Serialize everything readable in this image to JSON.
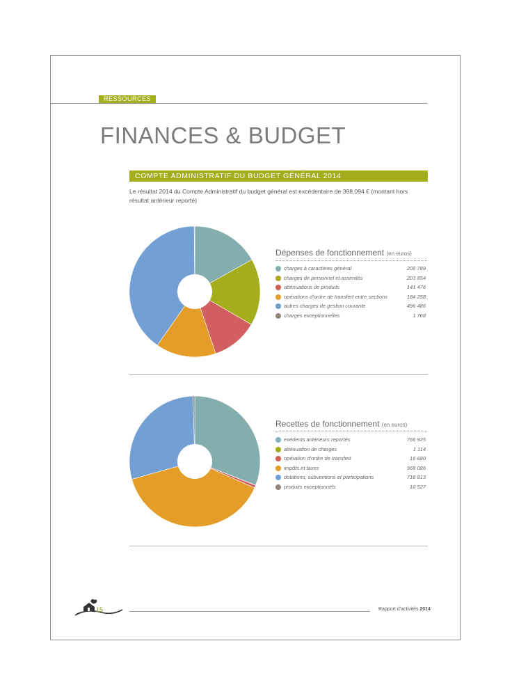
{
  "header": {
    "section_tag": "RESSOURCES",
    "title": "FINANCES & BUDGET"
  },
  "subtitle": "COMPTE ADMINISTRATIF DU BUDGET GÉNÉRAL 2014",
  "intro": "Le résultat 2014 du Compte Administratif du budget général  est excédentaire de 398.094 € (montant hors résultat antérieur reporté)",
  "colors": {
    "accent": "#a4ad1c",
    "teal": "#84aeae",
    "olive": "#a4ad1c",
    "red": "#d25f5f",
    "orange": "#e39d28",
    "blue": "#729fd4",
    "gray": "#8f8575"
  },
  "chart_data": [
    {
      "type": "pie",
      "title": "Dépenses de fonctionnement",
      "unit": "(en euros)",
      "donut": true,
      "categories": [
        "charges à caractères général",
        "charges de personnel et assimilés",
        "atténuations de produits",
        "opérations d'ordre de transfert entre sections",
        "autres charges de gestion courante",
        "charges exceptionnelles"
      ],
      "values": [
        208789,
        203854,
        141476,
        184258,
        496486,
        1768
      ],
      "value_labels": [
        "208 789",
        "203 854",
        "141 476",
        "184 258",
        "496 486",
        "1 768"
      ],
      "colors": [
        "#84aeae",
        "#a4ad1c",
        "#d25f5f",
        "#e39d28",
        "#729fd4",
        "#8f8575"
      ]
    },
    {
      "type": "pie",
      "title": "Recettes de fonctionnement",
      "unit": "(en euros)",
      "donut": true,
      "categories": [
        "exédents antérieurs reportés",
        "atténuation de charges",
        "opération d'ordre de transfert",
        "impôts et taxes",
        "dotations, subventions et participations",
        "produits exceptionnels"
      ],
      "values": [
        766925,
        1114,
        16680,
        968086,
        718813,
        10527
      ],
      "value_labels": [
        "766 925",
        "1 114",
        "16 680",
        "968 086",
        "718 813",
        "10 527"
      ],
      "colors": [
        "#84aeae",
        "#a4ad1c",
        "#d25f5f",
        "#e39d28",
        "#729fd4",
        "#8f8575"
      ]
    }
  ],
  "footer": {
    "page_number": "15",
    "report_label": "Rapport d'activités",
    "report_year": "2014"
  }
}
